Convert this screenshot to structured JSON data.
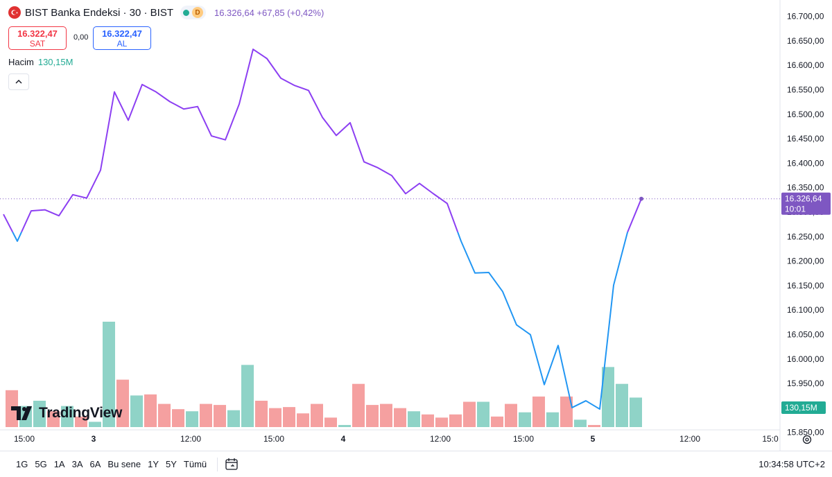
{
  "header": {
    "symbol": "BIST Banka Endeksi · 30 · BIST",
    "status_letter": "D",
    "quote": "16.326,64 +67,85 (+0,42%)"
  },
  "trade": {
    "sell_price": "16.322,47",
    "sell_label": "SAT",
    "spread": "0,00",
    "buy_price": "16.322,47",
    "buy_label": "AL"
  },
  "volume_legend": {
    "label": "Hacim",
    "value": "130,15M"
  },
  "logo_text": "TradingView",
  "price_tag": {
    "price": "16.326,64",
    "time": "10:01"
  },
  "volume_tag": "130,15M",
  "timeframes": [
    "1G",
    "5G",
    "1A",
    "3A",
    "6A",
    "Bu sene",
    "1Y",
    "5Y",
    "Tümü"
  ],
  "clock": "10:34:58 UTC+2",
  "colors": {
    "line_above": "#8c3ff2",
    "line_below": "#2196f3",
    "vol_up": "#8fd3c7",
    "vol_down": "#f5a0a0",
    "price_tag": "#7e57c2",
    "volume_tag": "#22ab94"
  },
  "chart_data": {
    "type": "line",
    "title": "",
    "baseline": 16258.79,
    "ylim": [
      15890,
      16710
    ],
    "y_ticks": [
      "16.700,00",
      "16.650,00",
      "16.600,00",
      "16.550,00",
      "16.500,00",
      "16.450,00",
      "16.400,00",
      "16.350,00",
      "16.300,00",
      "16.250,00",
      "16.200,00",
      "16.150,00",
      "16.100,00",
      "16.050,00",
      "16.000,00",
      "15.950,00",
      "15.900,00",
      "15.850,00"
    ],
    "y_tick_values": [
      16700,
      16650,
      16600,
      16550,
      16500,
      16450,
      16400,
      16350,
      16300,
      16250,
      16200,
      16150,
      16100,
      16050,
      16000,
      15950,
      15900,
      15850
    ],
    "x_ticks": [
      {
        "label": "15:00",
        "idx": 1.5,
        "bold": false
      },
      {
        "label": "3",
        "idx": 6.5,
        "bold": true
      },
      {
        "label": "12:00",
        "idx": 13.5,
        "bold": false
      },
      {
        "label": "15:00",
        "idx": 19.5,
        "bold": false
      },
      {
        "label": "4",
        "idx": 24.5,
        "bold": true
      },
      {
        "label": "12:00",
        "idx": 31.5,
        "bold": false
      },
      {
        "label": "15:00",
        "idx": 37.5,
        "bold": false
      },
      {
        "label": "5",
        "idx": 42.5,
        "bold": true
      },
      {
        "label": "12:00",
        "idx": 49.5,
        "bold": false
      },
      {
        "label": "15:0",
        "idx": 55.3,
        "bold": false
      }
    ],
    "close": [
      16295,
      16240,
      16302,
      16304,
      16292,
      16335,
      16328,
      16385,
      16545,
      16487,
      16560,
      16545,
      16525,
      16510,
      16515,
      16455,
      16447,
      16520,
      16632,
      16613,
      16573,
      16558,
      16548,
      16493,
      16456,
      16482,
      16402,
      16390,
      16374,
      16337,
      16358,
      16337,
      16317,
      16240,
      16175,
      16176,
      16137,
      16069,
      16049,
      15947,
      16027,
      15900,
      15914,
      15897,
      16150,
      16258,
      16326.64
    ],
    "volume": [
      {
        "v": 0.35,
        "up": false
      },
      {
        "v": 0.2,
        "up": true
      },
      {
        "v": 0.25,
        "up": true
      },
      {
        "v": 0.15,
        "up": false
      },
      {
        "v": 0.2,
        "up": true
      },
      {
        "v": 0.1,
        "up": false
      },
      {
        "v": 0.05,
        "up": true
      },
      {
        "v": 1.0,
        "up": true
      },
      {
        "v": 0.45,
        "up": false
      },
      {
        "v": 0.3,
        "up": true
      },
      {
        "v": 0.31,
        "up": false
      },
      {
        "v": 0.22,
        "up": false
      },
      {
        "v": 0.17,
        "up": false
      },
      {
        "v": 0.15,
        "up": true
      },
      {
        "v": 0.22,
        "up": false
      },
      {
        "v": 0.21,
        "up": false
      },
      {
        "v": 0.16,
        "up": true
      },
      {
        "v": 0.59,
        "up": true
      },
      {
        "v": 0.25,
        "up": false
      },
      {
        "v": 0.18,
        "up": false
      },
      {
        "v": 0.19,
        "up": false
      },
      {
        "v": 0.13,
        "up": false
      },
      {
        "v": 0.22,
        "up": false
      },
      {
        "v": 0.09,
        "up": false
      },
      {
        "v": 0.02,
        "up": true
      },
      {
        "v": 0.41,
        "up": false
      },
      {
        "v": 0.21,
        "up": false
      },
      {
        "v": 0.22,
        "up": false
      },
      {
        "v": 0.18,
        "up": false
      },
      {
        "v": 0.15,
        "up": true
      },
      {
        "v": 0.12,
        "up": false
      },
      {
        "v": 0.09,
        "up": false
      },
      {
        "v": 0.12,
        "up": false
      },
      {
        "v": 0.24,
        "up": false
      },
      {
        "v": 0.24,
        "up": true
      },
      {
        "v": 0.1,
        "up": false
      },
      {
        "v": 0.22,
        "up": false
      },
      {
        "v": 0.14,
        "up": true
      },
      {
        "v": 0.29,
        "up": false
      },
      {
        "v": 0.14,
        "up": true
      },
      {
        "v": 0.29,
        "up": false
      },
      {
        "v": 0.07,
        "up": true
      },
      {
        "v": 0.02,
        "up": false
      },
      {
        "v": 0.57,
        "up": true
      },
      {
        "v": 0.41,
        "up": true
      },
      {
        "v": 0.28,
        "up": true
      }
    ]
  }
}
